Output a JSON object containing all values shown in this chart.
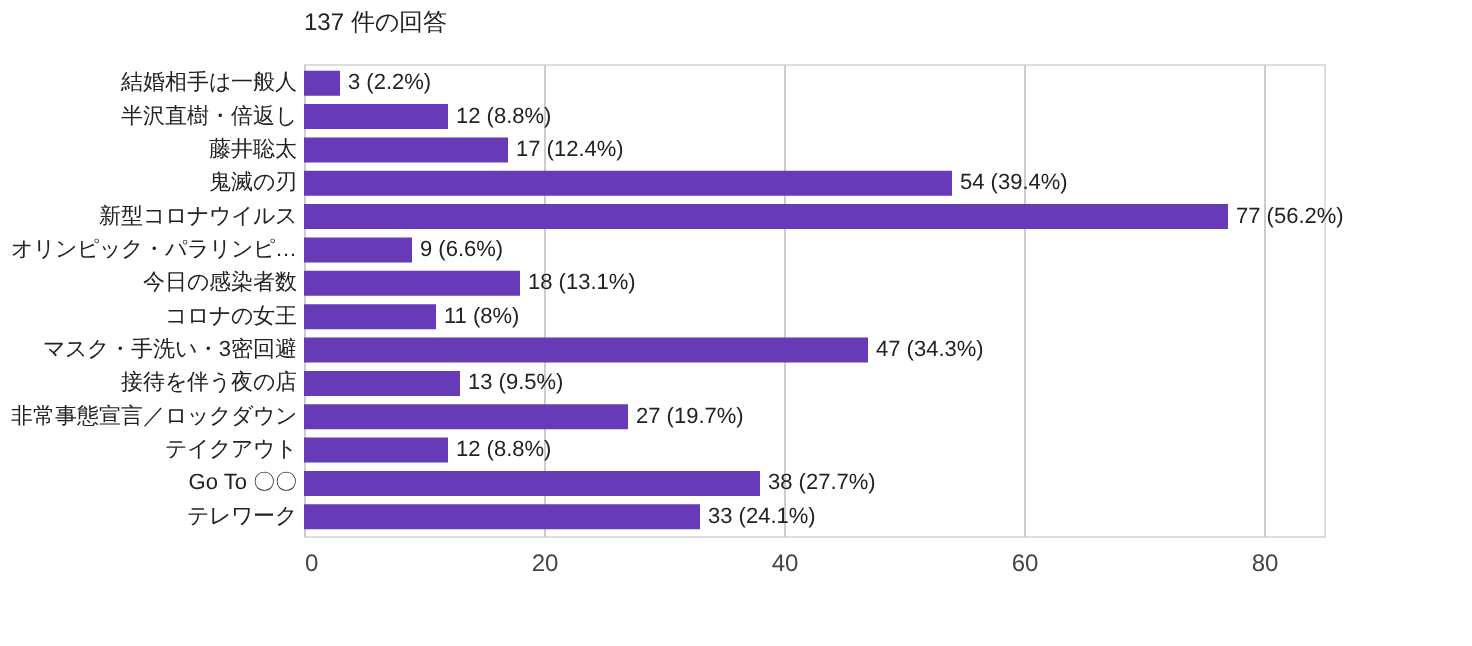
{
  "chart_data": {
    "type": "bar",
    "orientation": "horizontal",
    "title": "137 件の回答",
    "categories": [
      "結婚相手は一般人",
      "半沢直樹・倍返し",
      "藤井聡太",
      "鬼滅の刃",
      "新型コロナウイルス",
      "オリンピック・パラリンピ…",
      "今日の感染者数",
      "コロナの女王",
      "マスク・手洗い・3密回避",
      "接待を伴う夜の店",
      "非常事態宣言／ロックダウン",
      "テイクアウト",
      "Go To 〇〇",
      "テレワーク"
    ],
    "values": [
      3,
      12,
      17,
      54,
      77,
      9,
      18,
      11,
      47,
      13,
      27,
      12,
      38,
      33
    ],
    "value_labels": [
      "3 (2.2%)",
      "12 (8.8%)",
      "17 (12.4%)",
      "54 (39.4%)",
      "77 (56.2%)",
      "9 (6.6%)",
      "18 (13.1%)",
      "11 (8%)",
      "47 (34.3%)",
      "13 (9.5%)",
      "27 (19.7%)",
      "12 (8.8%)",
      "38 (27.7%)",
      "33 (24.1%)"
    ],
    "color": "#673ab7",
    "xlim": [
      0,
      85
    ],
    "xticks": [
      0,
      20,
      40,
      60,
      80
    ],
    "grid": "x"
  }
}
